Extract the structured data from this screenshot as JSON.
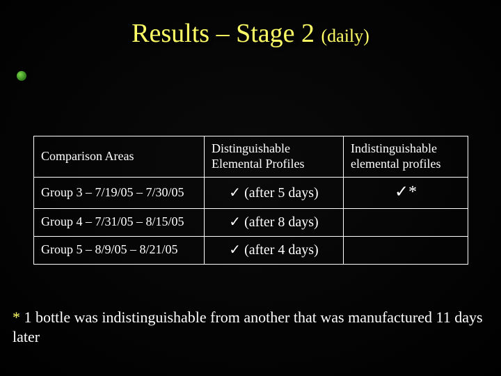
{
  "title": {
    "main": "Results – Stage 2 ",
    "paren": "(daily)"
  },
  "table": {
    "headers": {
      "col1": "Comparison Areas",
      "col2": "Distinguishable Elemental Profiles",
      "col3": "Indistinguishable elemental profiles"
    },
    "rows": [
      {
        "label": "Group 3 – 7/19/05 – 7/30/05",
        "dist_check": "✓",
        "dist_text": " (after 5 days)",
        "indist_check": "✓",
        "indist_text": "*"
      },
      {
        "label": "Group 4 – 7/31/05 – 8/15/05",
        "dist_check": "✓",
        "dist_text": " (after 8 days)",
        "indist_check": "",
        "indist_text": ""
      },
      {
        "label": "Group 5 – 8/9/05 – 8/21/05",
        "dist_check": "✓",
        "dist_text": " (after 4 days)",
        "indist_check": "",
        "indist_text": ""
      }
    ]
  },
  "footnote": {
    "ast": "* ",
    "text": "1 bottle was indistinguishable from another that was manufactured 11 days later"
  },
  "colors": {
    "title_color": "#ffff66",
    "text_color": "#ffffff",
    "border_color": "#ffffff",
    "background": "#000000"
  }
}
